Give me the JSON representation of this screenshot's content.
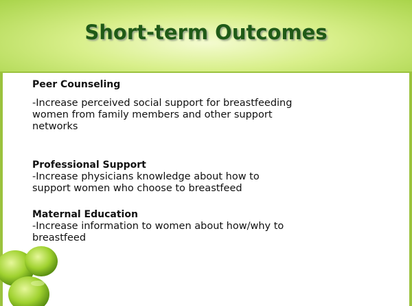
{
  "title": "Short-term Outcomes",
  "sections": [
    {
      "heading": "Peer Counseling",
      "lines": [
        "-Increase perceived social support for breastfeeding",
        "women from family members and other support",
        "networks"
      ]
    },
    {
      "heading": "Professional Support",
      "lines": [
        "-Increase physicians knowledge about how to",
        "support women who choose to breastfeed"
      ]
    },
    {
      "heading": "Maternal Education",
      "lines": [
        "-Increase information to women about how/why to",
        "breastfeed"
      ]
    }
  ]
}
